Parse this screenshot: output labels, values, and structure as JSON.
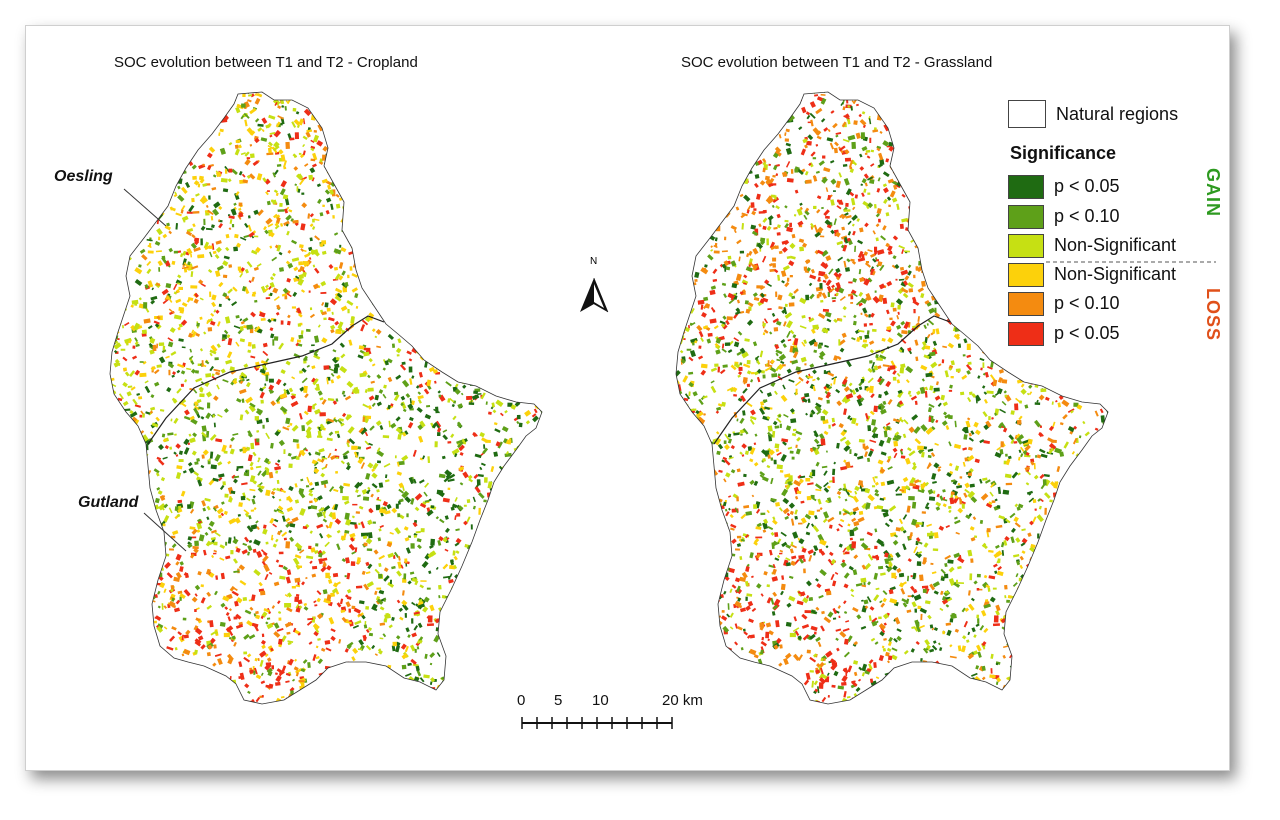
{
  "maps": {
    "left_title": "SOC evolution between T1 and T2 - Cropland",
    "right_title": "SOC evolution between T1 and T2 - Grassland"
  },
  "regions": {
    "north": "Oesling",
    "south": "Gutland"
  },
  "north_arrow": {
    "label": "N"
  },
  "legend": {
    "natural_regions": "Natural regions",
    "heading": "Significance",
    "gain_label": "GAIN",
    "loss_label": "LOSS",
    "gain_color": "#2e9a20",
    "loss_color": "#e0501a",
    "items": [
      {
        "label": "p < 0.05",
        "color": "#1f6b12"
      },
      {
        "label": "p < 0.10",
        "color": "#5ea019"
      },
      {
        "label": "Non-Significant",
        "color": "#c6e013"
      },
      {
        "label": "Non-Significant",
        "color": "#fcd10b"
      },
      {
        "label": "p < 0.10",
        "color": "#f48b10"
      },
      {
        "label": "p < 0.05",
        "color": "#ee2e17"
      }
    ]
  },
  "scale_bar": {
    "labels": [
      "0",
      "5",
      "10",
      "20 km"
    ]
  }
}
